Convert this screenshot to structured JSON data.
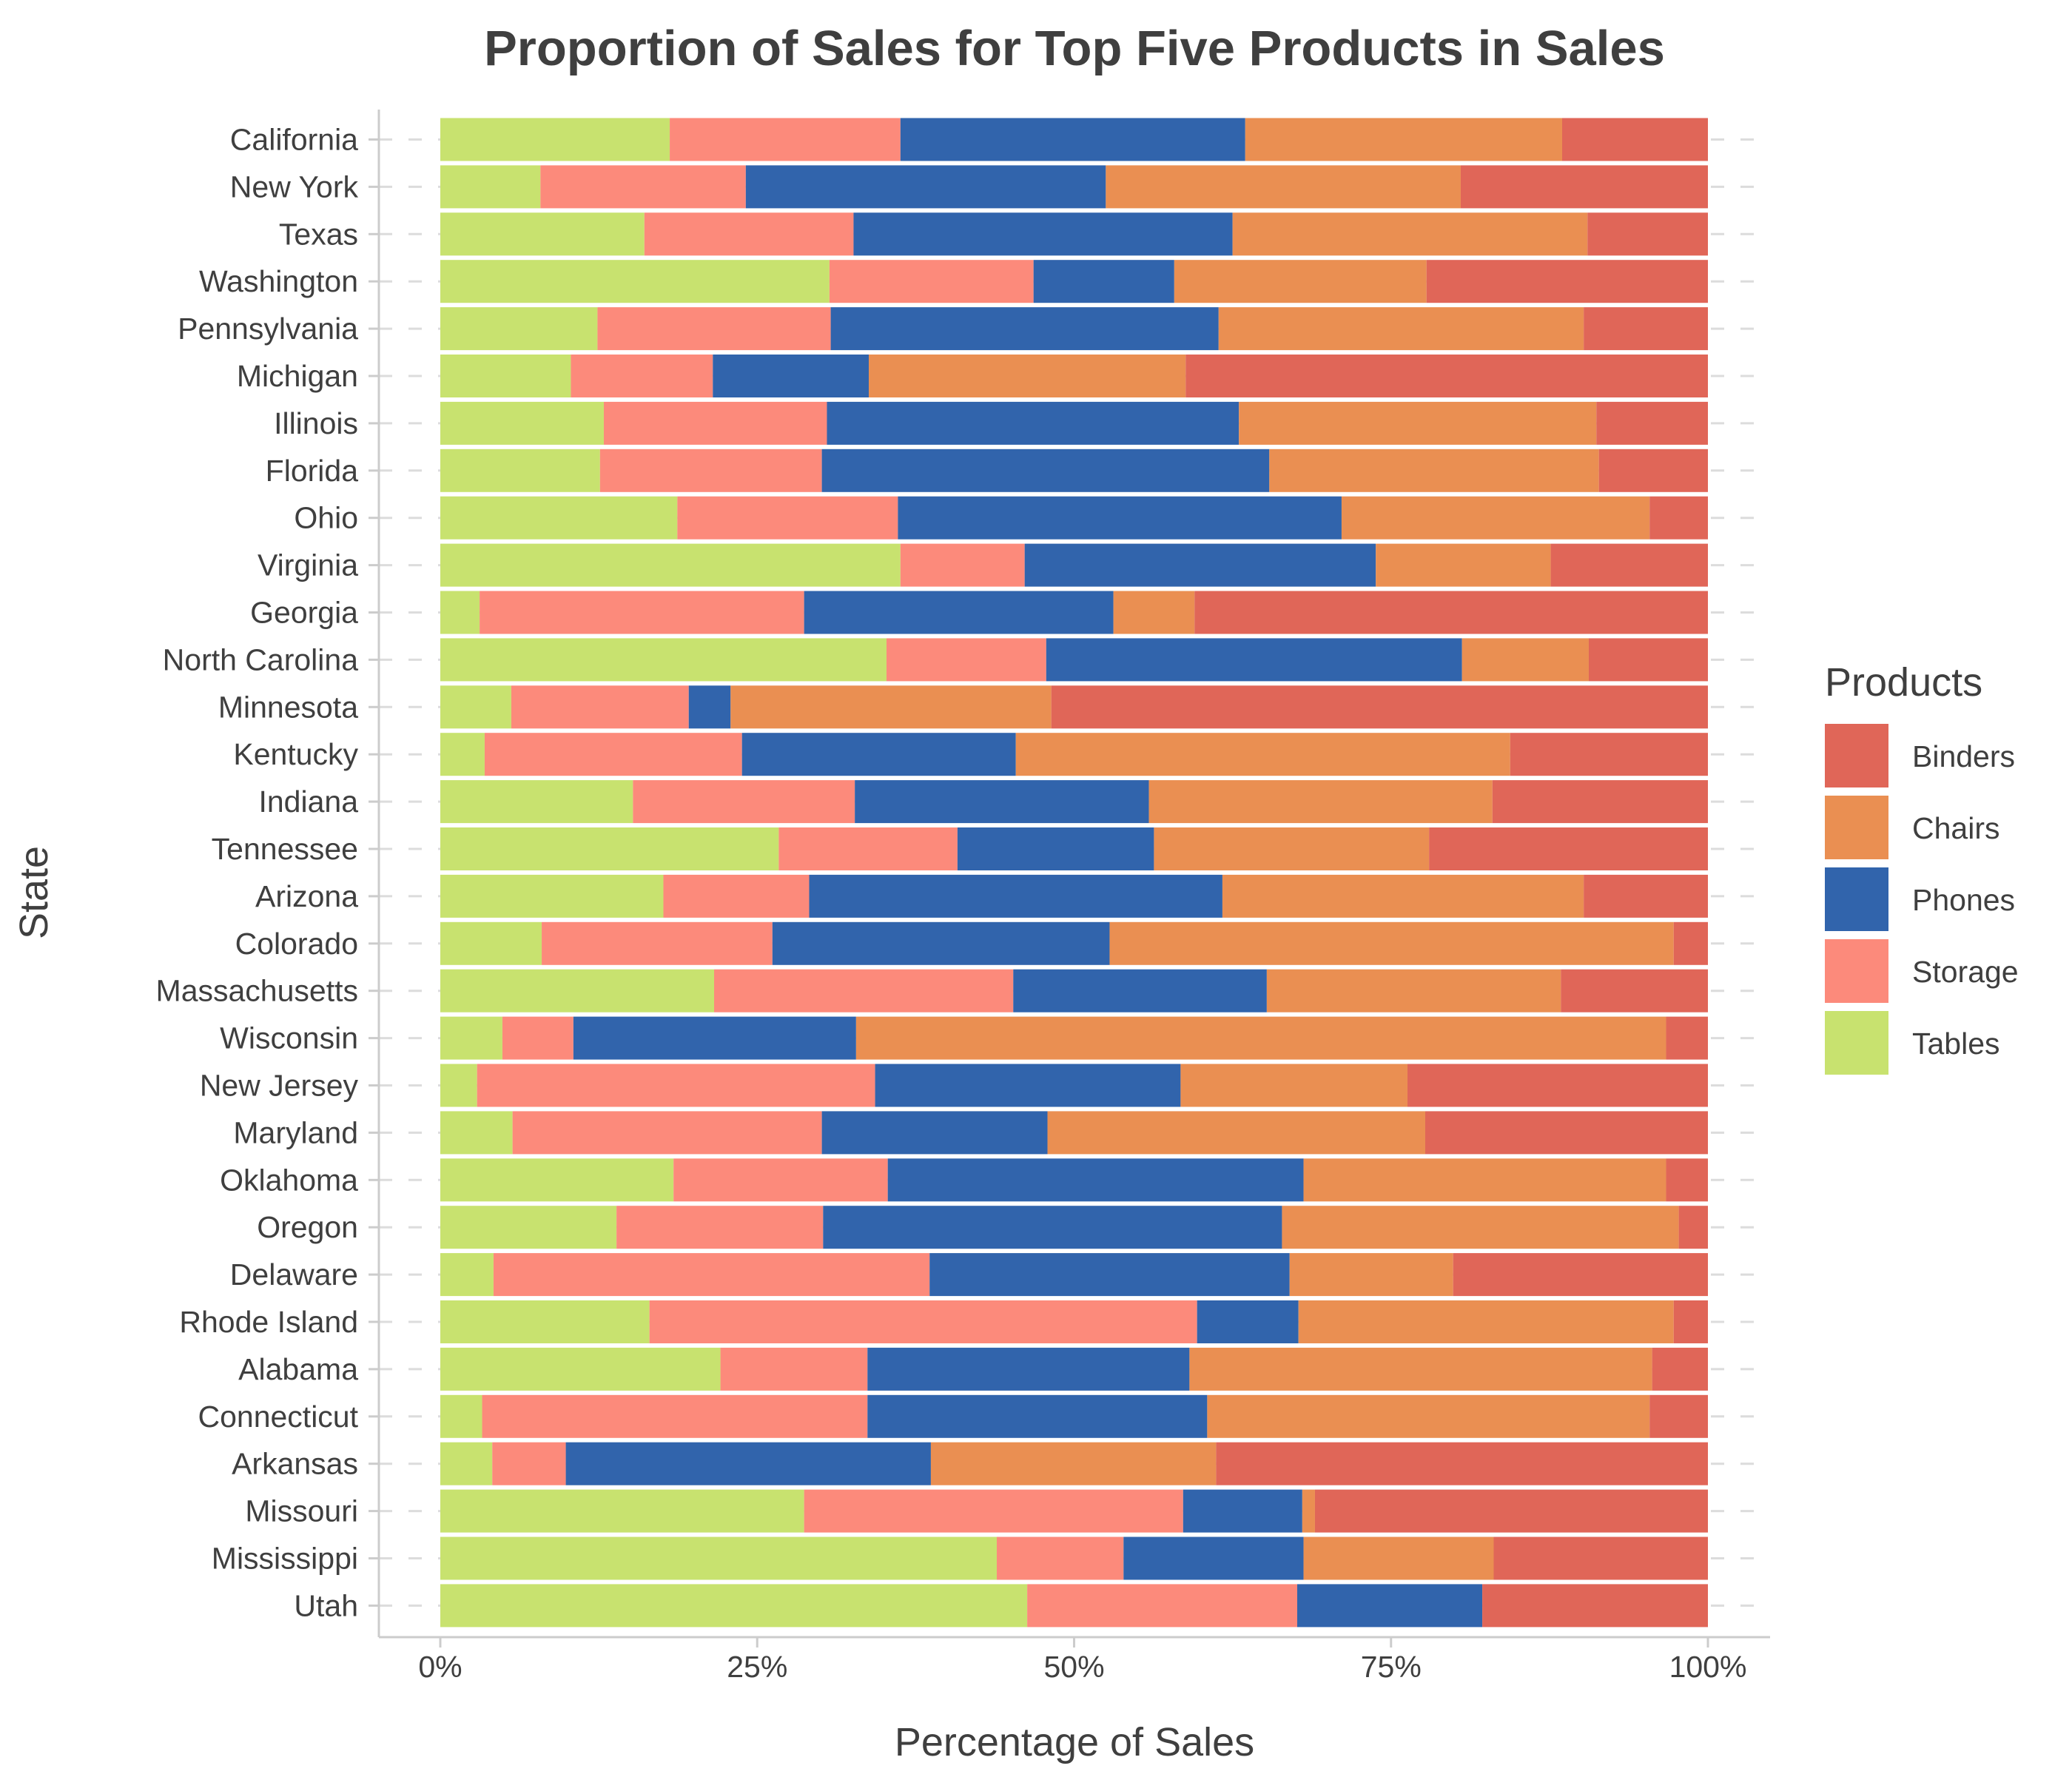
{
  "chart_data": {
    "type": "bar",
    "orientation": "horizontal",
    "stacked": "percent",
    "title": "Proportion of Sales for Top Five Products in Sales",
    "xlabel": "Percentage of Sales",
    "ylabel": "State",
    "xlim": [
      0,
      100
    ],
    "x_ticks": [
      "0%",
      "25%",
      "50%",
      "75%",
      "100%"
    ],
    "x_tick_values": [
      0,
      25,
      50,
      75,
      100
    ],
    "grid": "dashed",
    "legend": {
      "title": "Products",
      "position": "right"
    },
    "categories": [
      "California",
      "New York",
      "Texas",
      "Washington",
      "Pennsylvania",
      "Michigan",
      "Illinois",
      "Florida",
      "Ohio",
      "Virginia",
      "Georgia",
      "North Carolina",
      "Minnesota",
      "Kentucky",
      "Indiana",
      "Tennessee",
      "Arizona",
      "Colorado",
      "Massachusetts",
      "Wisconsin",
      "New Jersey",
      "Maryland",
      "Oklahoma",
      "Oregon",
      "Delaware",
      "Rhode Island",
      "Alabama",
      "Connecticut",
      "Arkansas",
      "Missouri",
      "Mississippi",
      "Utah"
    ],
    "stack_order": [
      "Tables",
      "Storage",
      "Phones",
      "Chairs",
      "Binders"
    ],
    "series": [
      {
        "name": "Binders",
        "color": "#e06658",
        "values": [
          11.5,
          19.5,
          9.5,
          22.2,
          9.8,
          41.2,
          8.8,
          8.6,
          4.6,
          12.4,
          40.5,
          9.4,
          51.8,
          15.6,
          17,
          22,
          9.8,
          2.7,
          11.6,
          3.3,
          23.7,
          22.3,
          3.3,
          2.3,
          20.1,
          2.7,
          4.4,
          4.6,
          38.8,
          31,
          16.9,
          17.8
        ]
      },
      {
        "name": "Chairs",
        "color": "#ea8f52",
        "values": [
          25,
          28,
          28,
          19.9,
          28.8,
          25,
          28.2,
          26,
          24.3,
          13.8,
          6.4,
          10,
          25.3,
          39,
          27.1,
          21.7,
          28.5,
          44.5,
          23.2,
          63.9,
          17.9,
          29.8,
          28.6,
          31.3,
          12.9,
          29.6,
          36.5,
          34.9,
          22.5,
          1,
          15,
          0
        ]
      },
      {
        "name": "Phones",
        "color": "#3164ac",
        "values": [
          27.2,
          28.4,
          29.9,
          11.1,
          30.6,
          12.3,
          32.5,
          35.3,
          35,
          27.7,
          24.4,
          32.8,
          3.3,
          21.6,
          23.2,
          15.5,
          32.6,
          26.6,
          20,
          22.3,
          24.1,
          17.8,
          32.8,
          36.2,
          28.4,
          8,
          25.4,
          26.8,
          28.8,
          9.4,
          14.2,
          14.6
        ]
      },
      {
        "name": "Storage",
        "color": "#fc8a7b",
        "values": [
          18.2,
          16.2,
          16.5,
          16.1,
          18.4,
          11.2,
          17.6,
          17.5,
          17.4,
          9.8,
          25.6,
          12.6,
          14,
          20.3,
          17.5,
          14.1,
          11.5,
          18.2,
          23.6,
          5.6,
          31.4,
          24.4,
          16.9,
          16.3,
          34.4,
          43.2,
          11.6,
          30.4,
          5.8,
          29.9,
          10,
          21.3
        ]
      },
      {
        "name": "Tables",
        "color": "#c8e26f",
        "values": [
          18.1,
          7.9,
          16.1,
          30.7,
          12.4,
          10.3,
          12.9,
          12.6,
          18.7,
          36.3,
          3.1,
          35.2,
          5.6,
          3.5,
          15.2,
          26.7,
          17.6,
          8,
          21.6,
          4.9,
          2.9,
          5.7,
          18.4,
          13.9,
          4.2,
          16.5,
          22.1,
          3.3,
          4.1,
          28.7,
          43.9,
          46.3
        ]
      }
    ]
  }
}
